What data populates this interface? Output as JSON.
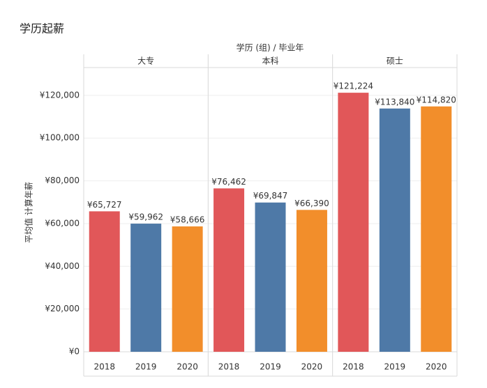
{
  "chart_data": {
    "type": "bar",
    "title": "学历起薪",
    "column_title": "学历 (组)  /  毕业年",
    "y_label": "平均值 计算年薪",
    "categories": [
      "2018",
      "2019",
      "2020"
    ],
    "colors": [
      "#e15759",
      "#4e79a7",
      "#f28e2b"
    ],
    "panels": [
      {
        "name": "大专",
        "values": [
          65727,
          59962,
          58666
        ],
        "value_labels": [
          "¥65,727",
          "¥59,962",
          "¥58,666"
        ]
      },
      {
        "name": "本科",
        "values": [
          76462,
          69847,
          66390
        ],
        "value_labels": [
          "¥76,462",
          "¥69,847",
          "¥66,390"
        ]
      },
      {
        "name": "硕士",
        "values": [
          121224,
          113840,
          114820
        ],
        "value_labels": [
          "¥121,224",
          "¥113,840",
          "¥114,820"
        ]
      }
    ],
    "ylim": [
      0,
      133000
    ],
    "yticks": [
      {
        "value": 0,
        "label": "¥0"
      },
      {
        "value": 20000,
        "label": "¥20,000"
      },
      {
        "value": 40000,
        "label": "¥40,000"
      },
      {
        "value": 60000,
        "label": "¥60,000"
      },
      {
        "value": 80000,
        "label": "¥80,000"
      },
      {
        "value": 100000,
        "label": "¥100,000"
      },
      {
        "value": 120000,
        "label": "¥120,000"
      }
    ],
    "grid": true
  }
}
